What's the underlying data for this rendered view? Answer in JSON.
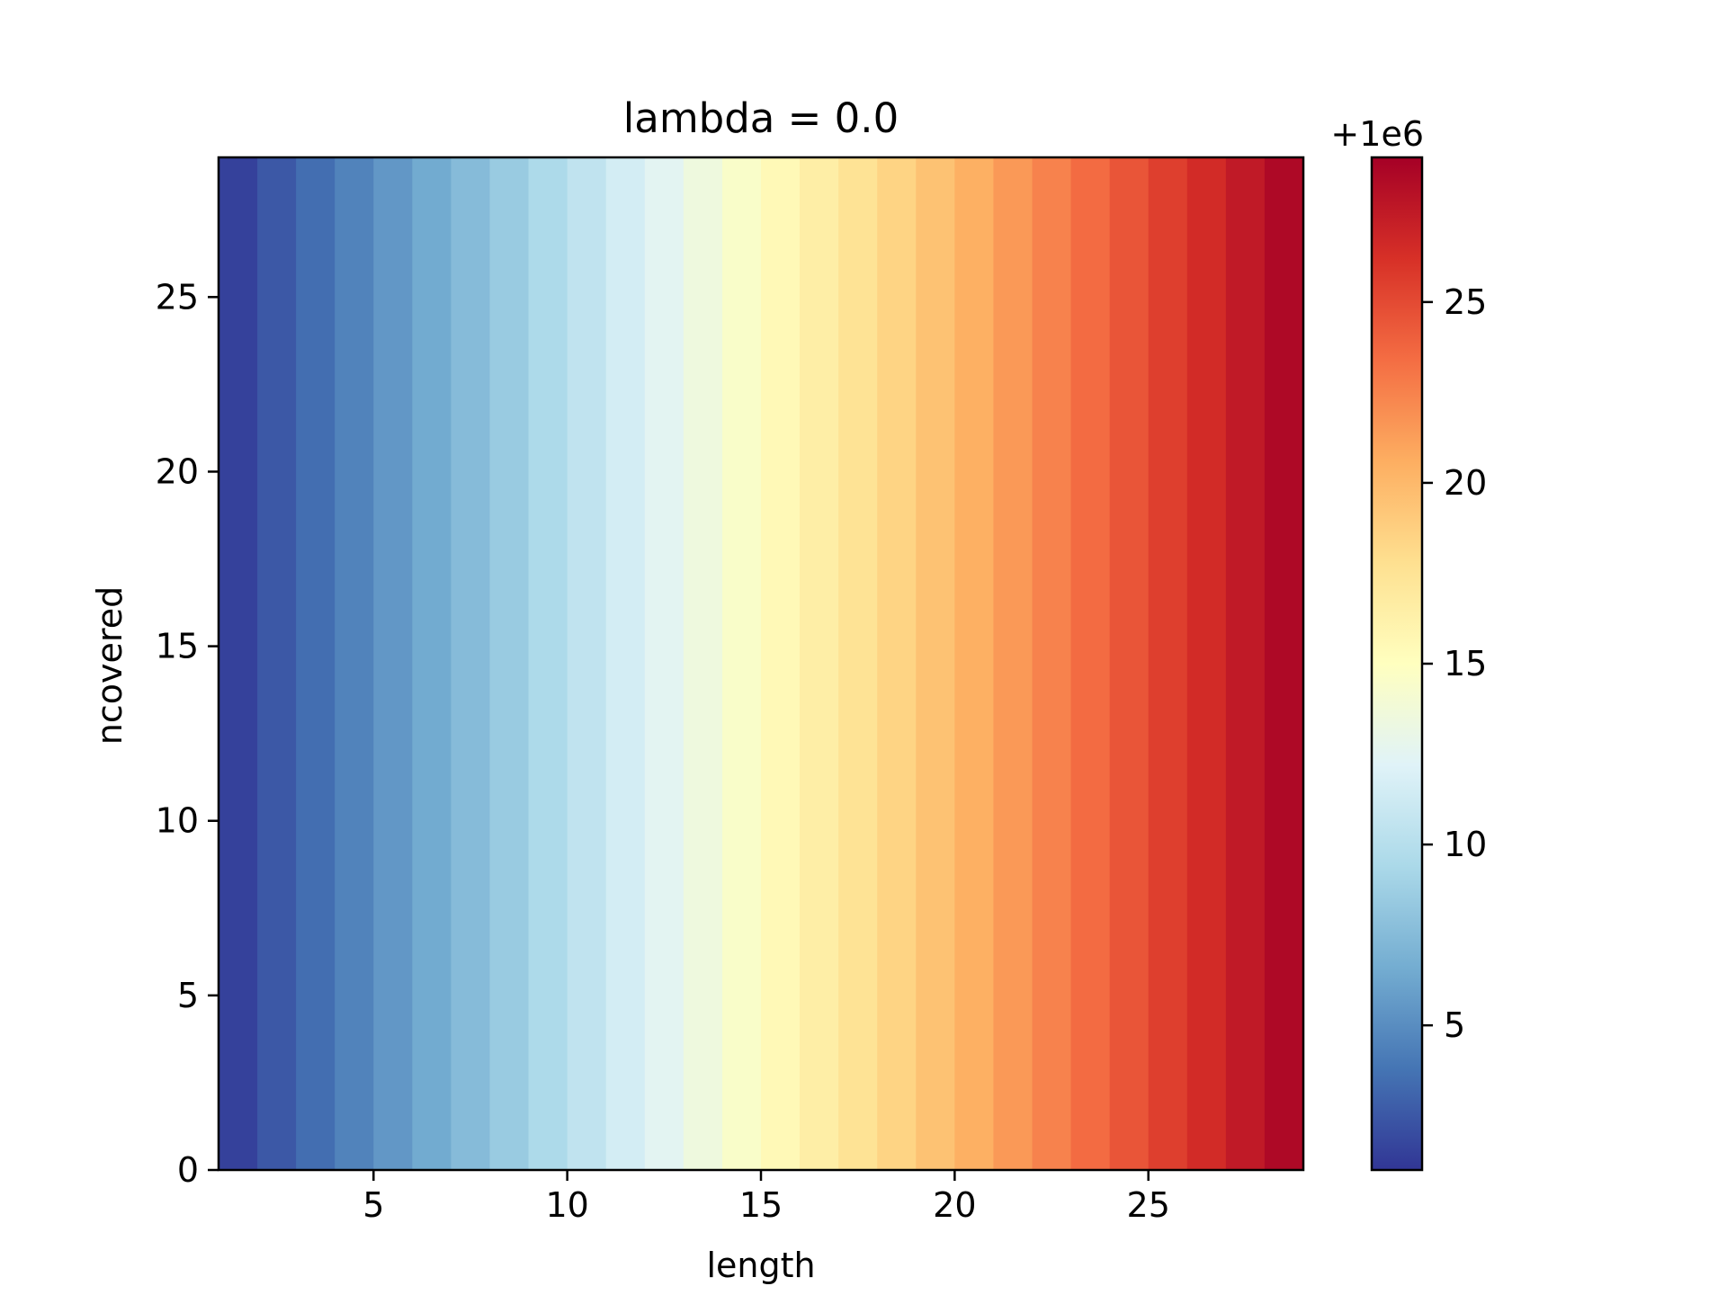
{
  "chart_data": {
    "type": "heatmap",
    "title": "lambda = 0.0",
    "xlabel": "length",
    "ylabel": "ncovered",
    "xlim": [
      1,
      29
    ],
    "ylim": [
      0,
      29
    ],
    "x_column_edges": [
      1,
      2,
      3,
      4,
      5,
      6,
      7,
      8,
      9,
      10,
      11,
      12,
      13,
      14,
      15,
      16,
      17,
      18,
      19,
      20,
      21,
      22,
      23,
      24,
      25,
      26,
      27,
      28,
      29
    ],
    "column_values": [
      1,
      2,
      3,
      4,
      5,
      6,
      7,
      8,
      9,
      10,
      11,
      12,
      13,
      14,
      15,
      16,
      17,
      18,
      19,
      20,
      21,
      22,
      23,
      24,
      25,
      26,
      27,
      28
    ],
    "value_note": "cell value is constant along ncovered; depends only on length",
    "xticks": [
      5,
      10,
      15,
      20,
      25
    ],
    "xtick_labels": [
      "5",
      "10",
      "15",
      "20",
      "25"
    ],
    "yticks": [
      0,
      5,
      10,
      15,
      20,
      25
    ],
    "ytick_labels": [
      "0",
      "5",
      "10",
      "15",
      "20",
      "25"
    ],
    "colormap": "RdYlBu_r",
    "colorbar": {
      "range": [
        1,
        29
      ],
      "offset_label": "+1e6",
      "ticks": [
        5,
        10,
        15,
        20,
        25
      ],
      "tick_labels": [
        "5",
        "10",
        "15",
        "20",
        "25"
      ]
    },
    "colormap_stops": [
      "#313695",
      "#4575b4",
      "#74add1",
      "#abd9e9",
      "#e0f3f8",
      "#ffffbf",
      "#fee090",
      "#fdae61",
      "#f46d43",
      "#d73027",
      "#a50026"
    ]
  }
}
